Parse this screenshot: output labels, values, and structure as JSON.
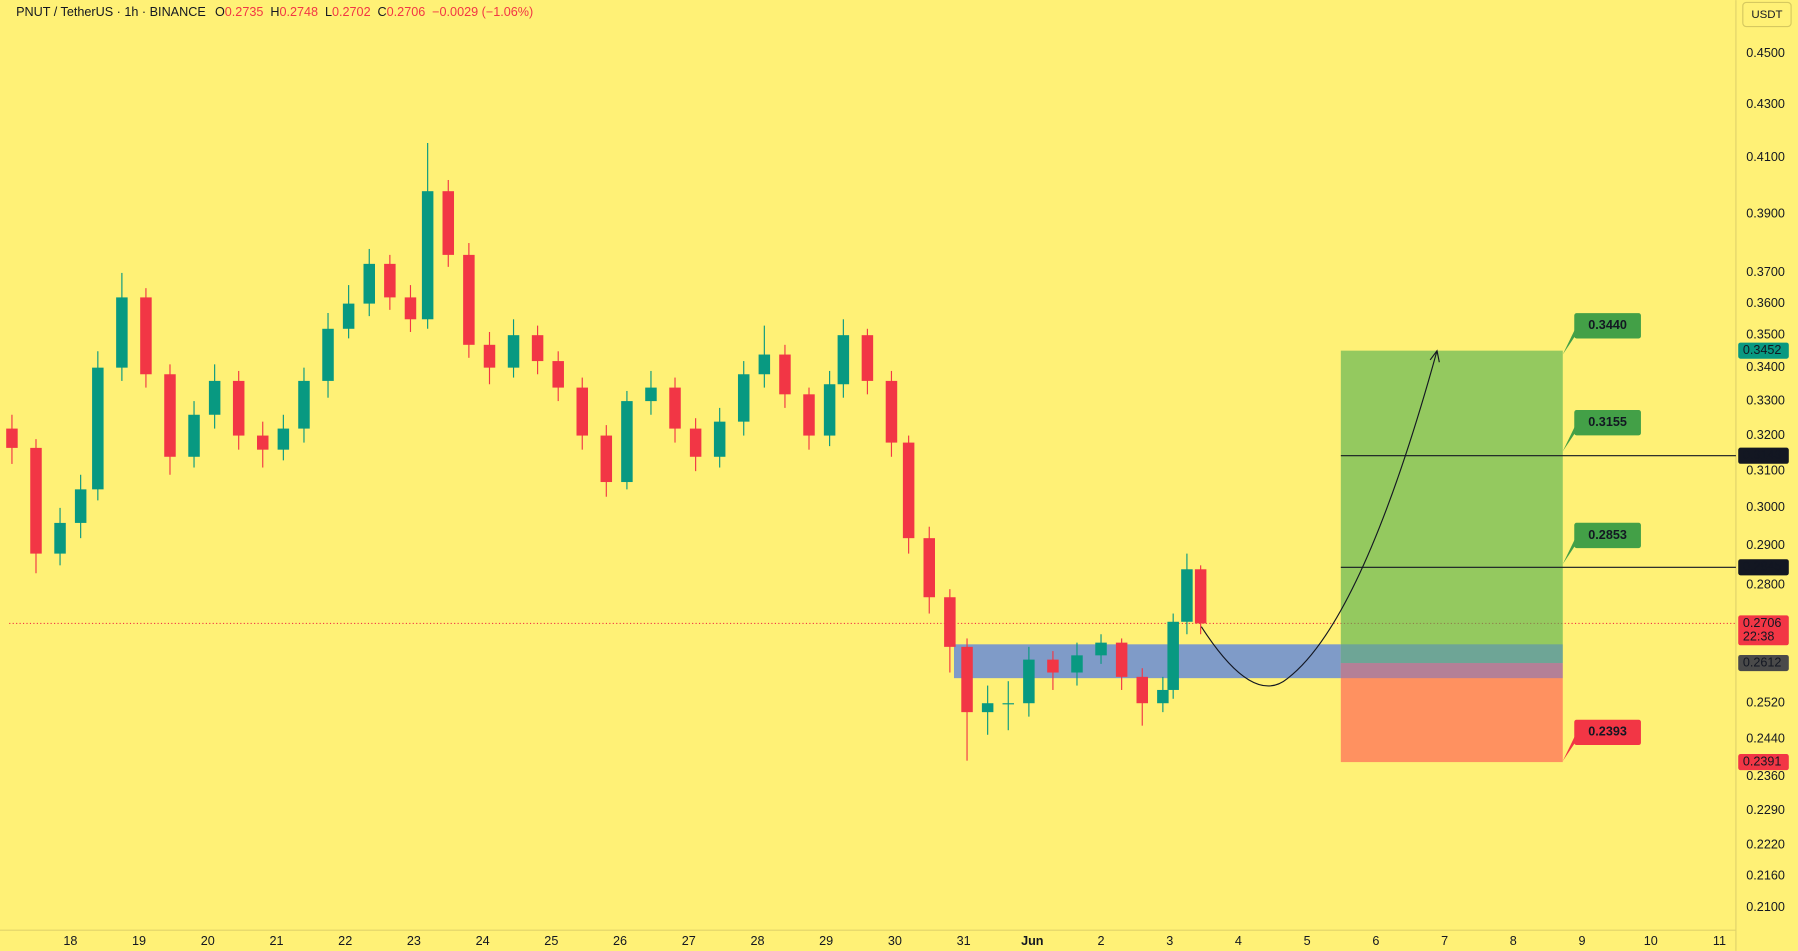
{
  "chart_data": {
    "type": "candlestick",
    "title": "PNUT / TetherUS · 1h · BINANCE",
    "ohlc": [
      {
        "key": "O",
        "value": 0.2735
      },
      {
        "key": "H",
        "value": 0.2748
      },
      {
        "key": "L",
        "value": 0.2702
      },
      {
        "key": "C",
        "value": 0.2706
      }
    ],
    "change": "−0.0029 (−1.06%)",
    "currency": "USDT",
    "log_scale": true,
    "grid": false,
    "up_color": "#089981",
    "down_color": "#f23645",
    "xlim": [
      -0.89,
      24.24
    ],
    "ylim": [
      0.206,
      0.472
    ],
    "xticks": [
      {
        "value": 0,
        "label": "18"
      },
      {
        "value": 1,
        "label": "19"
      },
      {
        "value": 2,
        "label": "20"
      },
      {
        "value": 3,
        "label": "21"
      },
      {
        "value": 4,
        "label": "22"
      },
      {
        "value": 5,
        "label": "23"
      },
      {
        "value": 6,
        "label": "24"
      },
      {
        "value": 7,
        "label": "25"
      },
      {
        "value": 8,
        "label": "26"
      },
      {
        "value": 9,
        "label": "27"
      },
      {
        "value": 10,
        "label": "28"
      },
      {
        "value": 11,
        "label": "29"
      },
      {
        "value": 12,
        "label": "30"
      },
      {
        "value": 13,
        "label": "31"
      },
      {
        "value": 14,
        "label": "Jun"
      },
      {
        "value": 15,
        "label": "2"
      },
      {
        "value": 16,
        "label": "3"
      },
      {
        "value": 17,
        "label": "4"
      },
      {
        "value": 18,
        "label": "5"
      },
      {
        "value": 19,
        "label": "6"
      },
      {
        "value": 20,
        "label": "7"
      },
      {
        "value": 21,
        "label": "8"
      },
      {
        "value": 22,
        "label": "9"
      },
      {
        "value": 23,
        "label": "10"
      },
      {
        "value": 24,
        "label": "11"
      }
    ],
    "yticks": [
      {
        "value": 0.45,
        "label": "0.4500"
      },
      {
        "value": 0.43,
        "label": "0.4300"
      },
      {
        "value": 0.41,
        "label": "0.4100"
      },
      {
        "value": 0.39,
        "label": "0.3900"
      },
      {
        "value": 0.37,
        "label": "0.3700"
      },
      {
        "value": 0.36,
        "label": "0.3600"
      },
      {
        "value": 0.35,
        "label": "0.3500"
      },
      {
        "value": 0.34,
        "label": "0.3400"
      },
      {
        "value": 0.33,
        "label": "0.3300"
      },
      {
        "value": 0.32,
        "label": "0.3200"
      },
      {
        "value": 0.31,
        "label": "0.3100"
      },
      {
        "value": 0.3,
        "label": "0.3000"
      },
      {
        "value": 0.29,
        "label": "0.2900"
      },
      {
        "value": 0.28,
        "label": "0.2800"
      },
      {
        "value": 0.252,
        "label": "0.2520"
      },
      {
        "value": 0.244,
        "label": "0.2440"
      },
      {
        "value": 0.236,
        "label": "0.2360"
      },
      {
        "value": 0.229,
        "label": "0.2290"
      },
      {
        "value": 0.222,
        "label": "0.2220"
      },
      {
        "value": 0.216,
        "label": "0.2160"
      },
      {
        "value": 0.21,
        "label": "0.2100"
      }
    ],
    "x": [
      -0.85,
      -0.5,
      -0.15,
      0.15,
      0.4,
      0.75,
      1.1,
      1.45,
      1.8,
      2.1,
      2.45,
      2.8,
      3.1,
      3.4,
      3.75,
      4.05,
      4.35,
      4.65,
      4.95,
      5.2,
      5.5,
      5.8,
      6.1,
      6.45,
      6.8,
      7.1,
      7.45,
      7.8,
      8.1,
      8.45,
      8.8,
      9.1,
      9.45,
      9.8,
      10.1,
      10.4,
      10.75,
      11.05,
      11.25,
      11.6,
      11.95,
      12.2,
      12.5,
      12.8,
      13.05,
      13.35,
      13.65,
      13.95,
      14.3,
      14.65,
      15.0,
      15.3,
      15.6,
      15.9,
      16.05,
      16.25,
      16.45
    ],
    "open": [
      0.322,
      0.3165,
      0.288,
      0.296,
      0.305,
      0.34,
      0.362,
      0.338,
      0.314,
      0.326,
      0.336,
      0.32,
      0.316,
      0.322,
      0.336,
      0.352,
      0.36,
      0.373,
      0.362,
      0.355,
      0.398,
      0.376,
      0.347,
      0.34,
      0.35,
      0.342,
      0.334,
      0.32,
      0.307,
      0.33,
      0.334,
      0.322,
      0.314,
      0.324,
      0.338,
      0.344,
      0.332,
      0.32,
      0.335,
      0.35,
      0.336,
      0.318,
      0.292,
      0.277,
      0.265,
      0.25,
      0.252,
      0.252,
      0.262,
      0.259,
      0.263,
      0.266,
      0.258,
      0.252,
      0.255,
      0.271,
      0.284
    ],
    "high": [
      0.326,
      0.319,
      0.3,
      0.309,
      0.345,
      0.37,
      0.365,
      0.341,
      0.33,
      0.341,
      0.339,
      0.324,
      0.326,
      0.34,
      0.357,
      0.366,
      0.378,
      0.376,
      0.366,
      0.4155,
      0.402,
      0.38,
      0.351,
      0.355,
      0.353,
      0.345,
      0.337,
      0.323,
      0.333,
      0.339,
      0.337,
      0.325,
      0.328,
      0.342,
      0.353,
      0.347,
      0.334,
      0.339,
      0.355,
      0.352,
      0.339,
      0.32,
      0.295,
      0.279,
      0.267,
      0.256,
      0.257,
      0.265,
      0.264,
      0.266,
      0.268,
      0.267,
      0.26,
      0.258,
      0.273,
      0.288,
      0.285
    ],
    "low": [
      0.312,
      0.283,
      0.285,
      0.292,
      0.302,
      0.336,
      0.334,
      0.309,
      0.311,
      0.322,
      0.316,
      0.311,
      0.313,
      0.318,
      0.331,
      0.349,
      0.356,
      0.358,
      0.351,
      0.352,
      0.372,
      0.343,
      0.335,
      0.337,
      0.338,
      0.33,
      0.316,
      0.303,
      0.305,
      0.326,
      0.318,
      0.31,
      0.311,
      0.32,
      0.334,
      0.328,
      0.316,
      0.317,
      0.331,
      0.332,
      0.314,
      0.288,
      0.273,
      0.259,
      0.2394,
      0.245,
      0.246,
      0.249,
      0.255,
      0.256,
      0.261,
      0.255,
      0.247,
      0.25,
      0.253,
      0.268,
      0.268
    ],
    "close": [
      0.3165,
      0.288,
      0.296,
      0.305,
      0.34,
      0.362,
      0.338,
      0.314,
      0.326,
      0.336,
      0.32,
      0.316,
      0.322,
      0.336,
      0.352,
      0.36,
      0.373,
      0.362,
      0.355,
      0.398,
      0.376,
      0.347,
      0.34,
      0.35,
      0.342,
      0.334,
      0.32,
      0.307,
      0.33,
      0.334,
      0.322,
      0.314,
      0.324,
      0.338,
      0.344,
      0.332,
      0.32,
      0.335,
      0.35,
      0.336,
      0.318,
      0.292,
      0.277,
      0.265,
      0.25,
      0.252,
      0.252,
      0.262,
      0.259,
      0.263,
      0.266,
      0.258,
      0.252,
      0.255,
      0.271,
      0.284,
      0.2706
    ],
    "current_price": {
      "value": 0.2706,
      "countdown": "22:38",
      "color": "#f23645"
    },
    "zone": {
      "top": 0.2656,
      "bottom": 0.2577,
      "x_range": [
        12.86,
        18.49
      ],
      "color": "#2962ff"
    },
    "position": {
      "target": 0.3452,
      "entry": 0.2612,
      "stop": 0.2391,
      "x_range": [
        18.49,
        21.72
      ],
      "profit_color": "#4caf50",
      "loss_color": "#ff5252",
      "target_tag_color": "#089981",
      "entry_tag_color": "#4a4a4a",
      "stop_tag_color": "#f23645"
    },
    "levels": [
      {
        "value": 0.3143,
        "color": "#131722"
      },
      {
        "value": 0.2845,
        "color": "#131722"
      }
    ],
    "targets": [
      {
        "value": 0.344,
        "label": "0.3440",
        "color": "#43a047"
      },
      {
        "value": 0.3155,
        "color": "#43a047"
      },
      {
        "value": 0.2853,
        "color": "#43a047"
      },
      {
        "value": 0.2393,
        "color": "#f23645"
      }
    ]
  }
}
